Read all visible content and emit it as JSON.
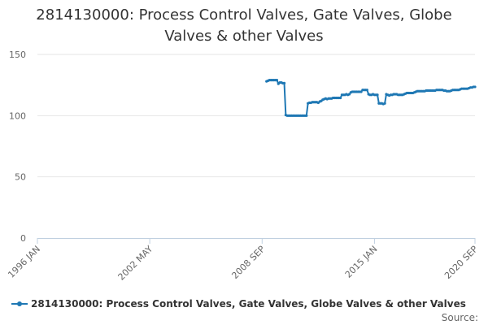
{
  "chart_data": {
    "type": "line",
    "title_lines": [
      "2814130000: Process Control Valves, Gate Valves, Globe",
      "Valves & other Valves"
    ],
    "x_ticks": [
      "1996 JAN",
      "2002 MAY",
      "2008 SEP",
      "2015 JAN",
      "2020 SEP"
    ],
    "y_ticks": [
      "0",
      "50",
      "100",
      "150"
    ],
    "ylim": [
      0,
      150
    ],
    "xlim": [
      "1996-01",
      "2020-09"
    ],
    "grid": true,
    "legend_position": "bottom-left",
    "series": [
      {
        "name": "2814130000: Process Control Valves, Gate Valves, Globe Valves & other Valves",
        "color": "#1f78b4",
        "points": [
          [
            "2008-12",
            128
          ],
          [
            "2009-01",
            128.5
          ],
          [
            "2009-02",
            129
          ],
          [
            "2009-03",
            129
          ],
          [
            "2009-04",
            129
          ],
          [
            "2009-05",
            129
          ],
          [
            "2009-06",
            129
          ],
          [
            "2009-07",
            129
          ],
          [
            "2009-08",
            126
          ],
          [
            "2009-09",
            127
          ],
          [
            "2009-10",
            127
          ],
          [
            "2009-11",
            126.5
          ],
          [
            "2009-12",
            126.5
          ],
          [
            "2010-01",
            100.5
          ],
          [
            "2010-02",
            100
          ],
          [
            "2010-03",
            100
          ],
          [
            "2010-04",
            100
          ],
          [
            "2010-05",
            100
          ],
          [
            "2010-06",
            100
          ],
          [
            "2010-07",
            100
          ],
          [
            "2010-08",
            100
          ],
          [
            "2010-09",
            100
          ],
          [
            "2010-10",
            100
          ],
          [
            "2010-11",
            100
          ],
          [
            "2010-12",
            100
          ],
          [
            "2011-01",
            100
          ],
          [
            "2011-02",
            100
          ],
          [
            "2011-03",
            100
          ],
          [
            "2011-04",
            110
          ],
          [
            "2011-05",
            110.5
          ],
          [
            "2011-06",
            110.5
          ],
          [
            "2011-07",
            111
          ],
          [
            "2011-08",
            111
          ],
          [
            "2011-09",
            111
          ],
          [
            "2011-10",
            111
          ],
          [
            "2011-11",
            110.5
          ],
          [
            "2011-12",
            111.5
          ],
          [
            "2012-01",
            112
          ],
          [
            "2012-02",
            113
          ],
          [
            "2012-03",
            113.5
          ],
          [
            "2012-04",
            114
          ],
          [
            "2012-05",
            113.5
          ],
          [
            "2012-06",
            114
          ],
          [
            "2012-07",
            114
          ],
          [
            "2012-08",
            114
          ],
          [
            "2012-09",
            114.5
          ],
          [
            "2012-10",
            114.5
          ],
          [
            "2012-11",
            114.5
          ],
          [
            "2012-12",
            114.5
          ],
          [
            "2013-01",
            114.5
          ],
          [
            "2013-02",
            114.5
          ],
          [
            "2013-03",
            117
          ],
          [
            "2013-04",
            117
          ],
          [
            "2013-05",
            117
          ],
          [
            "2013-06",
            117.5
          ],
          [
            "2013-07",
            117
          ],
          [
            "2013-08",
            117.5
          ],
          [
            "2013-09",
            119
          ],
          [
            "2013-10",
            119.5
          ],
          [
            "2013-11",
            119.5
          ],
          [
            "2013-12",
            119.5
          ],
          [
            "2014-01",
            119.5
          ],
          [
            "2014-02",
            119.5
          ],
          [
            "2014-03",
            119.5
          ],
          [
            "2014-04",
            119.5
          ],
          [
            "2014-05",
            121
          ],
          [
            "2014-06",
            121
          ],
          [
            "2014-07",
            121
          ],
          [
            "2014-08",
            121
          ],
          [
            "2014-09",
            117.5
          ],
          [
            "2014-10",
            117
          ],
          [
            "2014-11",
            117
          ],
          [
            "2014-12",
            117.5
          ],
          [
            "2015-01",
            117
          ],
          [
            "2015-02",
            117
          ],
          [
            "2015-03",
            117
          ],
          [
            "2015-04",
            110
          ],
          [
            "2015-05",
            110
          ],
          [
            "2015-06",
            110
          ],
          [
            "2015-07",
            109.5
          ],
          [
            "2015-08",
            110
          ],
          [
            "2015-09",
            117.5
          ],
          [
            "2015-10",
            117
          ],
          [
            "2015-11",
            116.5
          ],
          [
            "2015-12",
            117
          ],
          [
            "2016-01",
            117
          ],
          [
            "2016-02",
            117.5
          ],
          [
            "2016-03",
            117.5
          ],
          [
            "2016-04",
            117.5
          ],
          [
            "2016-05",
            117
          ],
          [
            "2016-06",
            117
          ],
          [
            "2016-07",
            117
          ],
          [
            "2016-08",
            117
          ],
          [
            "2016-09",
            117.5
          ],
          [
            "2016-10",
            118
          ],
          [
            "2016-11",
            118.5
          ],
          [
            "2016-12",
            118.5
          ],
          [
            "2017-01",
            118.5
          ],
          [
            "2017-02",
            118.5
          ],
          [
            "2017-03",
            118.5
          ],
          [
            "2017-04",
            119
          ],
          [
            "2017-05",
            119.5
          ],
          [
            "2017-06",
            120
          ],
          [
            "2017-07",
            120
          ],
          [
            "2017-08",
            120
          ],
          [
            "2017-09",
            120
          ],
          [
            "2017-10",
            120
          ],
          [
            "2017-11",
            120
          ],
          [
            "2017-12",
            120.5
          ],
          [
            "2018-01",
            120.5
          ],
          [
            "2018-02",
            120.5
          ],
          [
            "2018-03",
            120.5
          ],
          [
            "2018-04",
            120.5
          ],
          [
            "2018-05",
            120.5
          ],
          [
            "2018-06",
            120.5
          ],
          [
            "2018-07",
            121
          ],
          [
            "2018-08",
            121
          ],
          [
            "2018-09",
            121
          ],
          [
            "2018-10",
            121
          ],
          [
            "2018-11",
            121
          ],
          [
            "2018-12",
            120.5
          ],
          [
            "2019-01",
            120.5
          ],
          [
            "2019-02",
            120
          ],
          [
            "2019-03",
            120
          ],
          [
            "2019-04",
            120
          ],
          [
            "2019-05",
            120.5
          ],
          [
            "2019-06",
            121
          ],
          [
            "2019-07",
            121
          ],
          [
            "2019-08",
            121
          ],
          [
            "2019-09",
            121
          ],
          [
            "2019-10",
            121
          ],
          [
            "2019-11",
            121.5
          ],
          [
            "2019-12",
            122
          ],
          [
            "2020-01",
            122
          ],
          [
            "2020-02",
            122
          ],
          [
            "2020-03",
            122
          ],
          [
            "2020-04",
            122
          ],
          [
            "2020-05",
            122.5
          ],
          [
            "2020-06",
            123
          ],
          [
            "2020-07",
            123
          ],
          [
            "2020-08",
            123.5
          ],
          [
            "2020-09",
            123.5
          ]
        ]
      }
    ]
  },
  "legend": {
    "label": "2814130000: Process Control Valves, Gate Valves, Globe Valves & other Valves"
  },
  "source_label": "Source:"
}
